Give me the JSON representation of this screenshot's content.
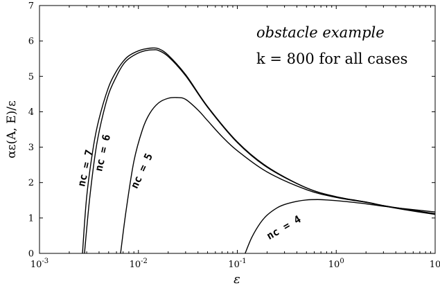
{
  "chart_data": {
    "type": "line",
    "title": "",
    "xlabel": "ε",
    "ylabel": "αε(A, E)/ε",
    "xscale": "log",
    "xlim": [
      0.001,
      10
    ],
    "ylim": [
      0,
      7
    ],
    "grid": false,
    "x_ticks": [
      {
        "value": 0.001,
        "base": "10",
        "exp": "-3"
      },
      {
        "value": 0.01,
        "base": "10",
        "exp": "-2"
      },
      {
        "value": 0.1,
        "base": "10",
        "exp": "-1"
      },
      {
        "value": 1,
        "base": "10",
        "exp": "0"
      },
      {
        "value": 10,
        "base": "10",
        "exp": ""
      }
    ],
    "y_ticks": [
      0,
      1,
      2,
      3,
      4,
      5,
      6,
      7
    ],
    "annotations": {
      "line1": "obstacle example",
      "line2": "k = 800 for all cases"
    },
    "series": [
      {
        "label": "nc = 7",
        "x": [
          0.00272,
          0.003,
          0.0035,
          0.004,
          0.005,
          0.006,
          0.007,
          0.008,
          0.01,
          0.012,
          0.0138,
          0.016,
          0.02,
          0.03,
          0.05,
          0.1,
          0.2,
          0.5,
          1,
          2,
          3,
          5,
          10
        ],
        "y": [
          0,
          1.6,
          3.0,
          3.8,
          4.7,
          5.15,
          5.42,
          5.58,
          5.72,
          5.78,
          5.8,
          5.78,
          5.6,
          5.05,
          4.15,
          3.15,
          2.45,
          1.85,
          1.6,
          1.45,
          1.35,
          1.25,
          1.12
        ]
      },
      {
        "label": "nc = 6",
        "x": [
          0.00285,
          0.0032,
          0.0037,
          0.0042,
          0.005,
          0.006,
          0.007,
          0.008,
          0.01,
          0.012,
          0.0142,
          0.016,
          0.02,
          0.03,
          0.05,
          0.1,
          0.2,
          0.5,
          1,
          2,
          3,
          5,
          10
        ],
        "y": [
          0,
          1.5,
          2.9,
          3.7,
          4.5,
          5.0,
          5.33,
          5.5,
          5.66,
          5.73,
          5.75,
          5.73,
          5.56,
          5.02,
          4.13,
          3.13,
          2.43,
          1.85,
          1.6,
          1.45,
          1.35,
          1.24,
          1.12
        ]
      },
      {
        "label": "nc = 5",
        "x": [
          0.0066,
          0.0075,
          0.009,
          0.011,
          0.013,
          0.016,
          0.02,
          0.025,
          0.03,
          0.04,
          0.05,
          0.07,
          0.1,
          0.2,
          0.5,
          1,
          2,
          3,
          5,
          10
        ],
        "y": [
          0,
          1.2,
          2.6,
          3.5,
          3.95,
          4.25,
          4.38,
          4.4,
          4.35,
          4.05,
          3.75,
          3.3,
          2.9,
          2.3,
          1.8,
          1.58,
          1.44,
          1.34,
          1.23,
          1.1
        ]
      },
      {
        "label": "nc = 4",
        "x": [
          0.12,
          0.14,
          0.17,
          0.2,
          0.25,
          0.3,
          0.4,
          0.5,
          0.65,
          0.8,
          1,
          1.5,
          2,
          3,
          5,
          10
        ],
        "y": [
          0,
          0.45,
          0.85,
          1.08,
          1.28,
          1.38,
          1.47,
          1.51,
          1.52,
          1.51,
          1.49,
          1.44,
          1.4,
          1.33,
          1.26,
          1.17
        ]
      }
    ]
  }
}
